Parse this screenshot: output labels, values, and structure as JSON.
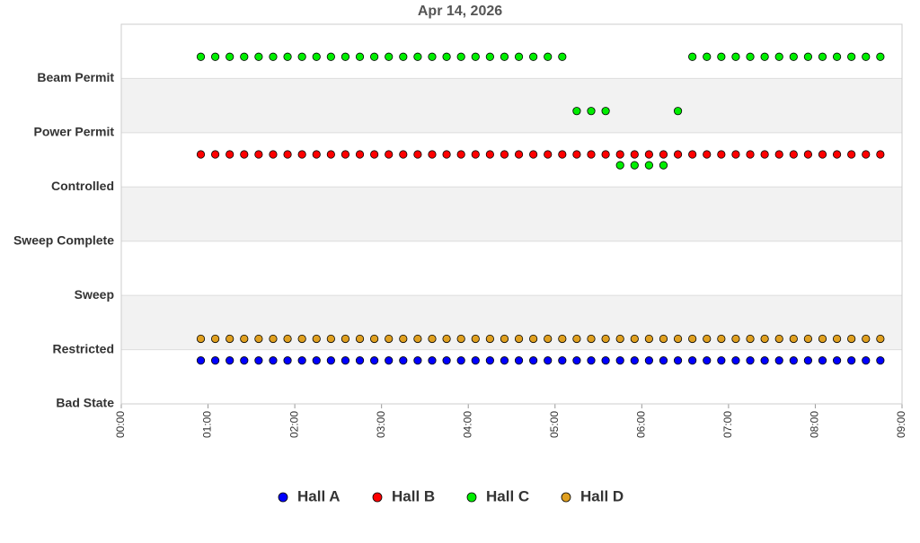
{
  "chart_data": {
    "type": "scatter",
    "title": "Apr 14, 2026",
    "x": [
      55,
      65,
      75,
      85,
      95,
      105,
      115,
      125,
      135,
      145,
      155,
      165,
      175,
      185,
      195,
      205,
      215,
      225,
      235,
      245,
      255,
      265,
      275,
      285,
      295,
      305,
      315,
      325,
      335,
      345,
      355,
      365,
      375,
      385,
      395,
      405,
      415,
      425,
      435,
      445,
      455,
      465,
      475,
      485,
      495,
      505,
      515,
      525
    ],
    "xlim": [
      0,
      540
    ],
    "xticks": [
      {
        "value": 0,
        "label": "00:00"
      },
      {
        "value": 60,
        "label": "01:00"
      },
      {
        "value": 120,
        "label": "02:00"
      },
      {
        "value": 180,
        "label": "03:00"
      },
      {
        "value": 240,
        "label": "04:00"
      },
      {
        "value": 300,
        "label": "05:00"
      },
      {
        "value": 360,
        "label": "06:00"
      },
      {
        "value": 420,
        "label": "07:00"
      },
      {
        "value": 480,
        "label": "08:00"
      },
      {
        "value": 540,
        "label": "09:00"
      }
    ],
    "ylim": [
      0,
      7
    ],
    "yticks": [
      {
        "value": 0,
        "label": "Bad State"
      },
      {
        "value": 1,
        "label": "Restricted"
      },
      {
        "value": 2,
        "label": "Sweep"
      },
      {
        "value": 3,
        "label": "Sweep Complete"
      },
      {
        "value": 4,
        "label": "Controlled"
      },
      {
        "value": 5,
        "label": "Power Permit"
      },
      {
        "value": 6,
        "label": "Beam Permit"
      }
    ],
    "bands": true,
    "legend": "bottom",
    "series": [
      {
        "name": "Hall A",
        "color": "#0000ff",
        "values": [
          0.8,
          0.8,
          0.8,
          0.8,
          0.8,
          0.8,
          0.8,
          0.8,
          0.8,
          0.8,
          0.8,
          0.8,
          0.8,
          0.8,
          0.8,
          0.8,
          0.8,
          0.8,
          0.8,
          0.8,
          0.8,
          0.8,
          0.8,
          0.8,
          0.8,
          0.8,
          0.8,
          0.8,
          0.8,
          0.8,
          0.8,
          0.8,
          0.8,
          0.8,
          0.8,
          0.8,
          0.8,
          0.8,
          0.8,
          0.8,
          0.8,
          0.8,
          0.8,
          0.8,
          0.8,
          0.8,
          0.8,
          0.8
        ]
      },
      {
        "name": "Hall B",
        "color": "#ff0000",
        "values": [
          4.6,
          4.6,
          4.6,
          4.6,
          4.6,
          4.6,
          4.6,
          4.6,
          4.6,
          4.6,
          4.6,
          4.6,
          4.6,
          4.6,
          4.6,
          4.6,
          4.6,
          4.6,
          4.6,
          4.6,
          4.6,
          4.6,
          4.6,
          4.6,
          4.6,
          4.6,
          4.6,
          4.6,
          4.6,
          4.6,
          4.6,
          4.6,
          4.6,
          4.6,
          4.6,
          4.6,
          4.6,
          4.6,
          4.6,
          4.6,
          4.6,
          4.6,
          4.6,
          4.6,
          4.6,
          4.6,
          4.6,
          4.6
        ]
      },
      {
        "name": "Hall C",
        "color": "#00ee00",
        "values": [
          6.4,
          6.4,
          6.4,
          6.4,
          6.4,
          6.4,
          6.4,
          6.4,
          6.4,
          6.4,
          6.4,
          6.4,
          6.4,
          6.4,
          6.4,
          6.4,
          6.4,
          6.4,
          6.4,
          6.4,
          6.4,
          6.4,
          6.4,
          6.4,
          6.4,
          6.4,
          5.4,
          5.4,
          5.4,
          4.4,
          4.4,
          4.4,
          4.4,
          5.4,
          6.4,
          6.4,
          6.4,
          6.4,
          6.4,
          6.4,
          6.4,
          6.4,
          6.4,
          6.4,
          6.4,
          6.4,
          6.4,
          6.4
        ]
      },
      {
        "name": "Hall D",
        "color": "#e0a020",
        "values": [
          1.2,
          1.2,
          1.2,
          1.2,
          1.2,
          1.2,
          1.2,
          1.2,
          1.2,
          1.2,
          1.2,
          1.2,
          1.2,
          1.2,
          1.2,
          1.2,
          1.2,
          1.2,
          1.2,
          1.2,
          1.2,
          1.2,
          1.2,
          1.2,
          1.2,
          1.2,
          1.2,
          1.2,
          1.2,
          1.2,
          1.2,
          1.2,
          1.2,
          1.2,
          1.2,
          1.2,
          1.2,
          1.2,
          1.2,
          1.2,
          1.2,
          1.2,
          1.2,
          1.2,
          1.2,
          1.2,
          1.2,
          1.2
        ]
      }
    ]
  }
}
